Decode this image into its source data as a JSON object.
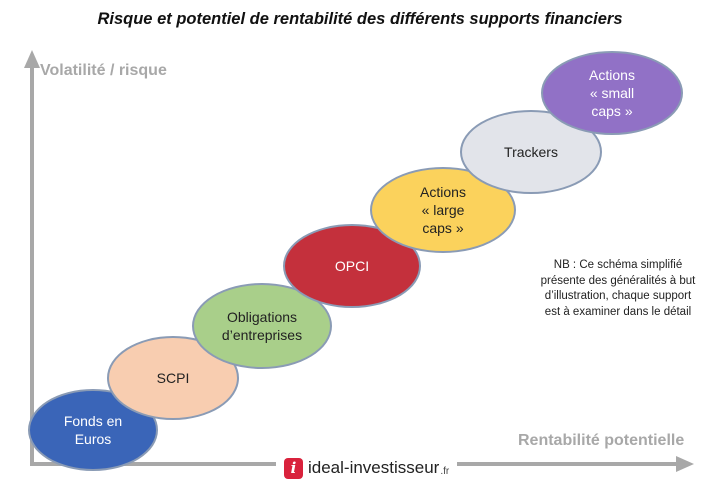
{
  "title": "Risque et potentiel de rentabilité des différents supports financiers",
  "y_axis_label": "Volatilité / risque",
  "x_axis_label": "Rentabilité potentielle",
  "supports": [
    {
      "label": "Fonds en\nEuros",
      "color": "#3a65b8",
      "text_color": "#ffffff"
    },
    {
      "label": "SCPI",
      "color": "#f8cdb0",
      "text_color": "#222222"
    },
    {
      "label": "Obligations\nd’entreprises",
      "color": "#a9cf8a",
      "text_color": "#222222"
    },
    {
      "label": "OPCI",
      "color": "#c4303c",
      "text_color": "#ffffff"
    },
    {
      "label": "Actions\n« large\ncaps »",
      "color": "#fbd25c",
      "text_color": "#222222"
    },
    {
      "label": "Trackers",
      "color": "#e2e4ea",
      "text_color": "#222222"
    },
    {
      "label": "Actions\n« small\ncaps »",
      "color": "#9171c6",
      "text_color": "#ffffff"
    }
  ],
  "note": "NB : Ce schéma simplifié présente des généralités à but d’illustration, chaque support est à examiner dans le détail",
  "logo": {
    "icon_letter": "i",
    "name": "ideal-investisseur",
    "tld": ".fr",
    "brand_color": "#d9223c"
  },
  "colors": {
    "axis": "#a8a8a8",
    "ellipse_border": "#8a9bb5"
  }
}
